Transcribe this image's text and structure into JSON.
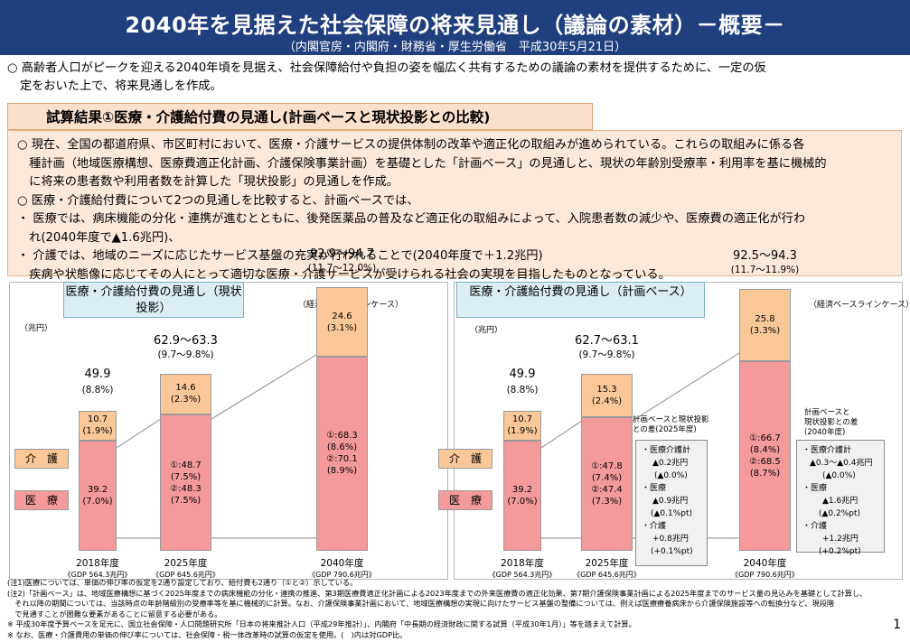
{
  "header": {
    "title": "2040年を見据えた社会保障の将来見通し（議論の素材）－概要－",
    "sub": "（内閣官房・内閣府・財務省・厚生労働省　平成30年5月21日）"
  },
  "intro": {
    "line1": "○ 高齢者人口がピークを迎える2040年頃を見据え、社会保障給付や負担の姿を幅広く共有するための議論の素材を提供するために、一定の仮",
    "line2": "定をおいた上で、将来見通しを作成。"
  },
  "section": {
    "title": "試算結果①医療・介護給付費の見通し(計画ベースと現状投影との比較)",
    "lines": [
      "○ 現在、全国の都道府県、市区町村において、医療・介護サービスの提供体制の改革や適正化の取組みが進められている。これらの取組みに係る各",
      "　種計画（地域医療構想、医療費適正化計画、介護保険事業計画）を基礎とした「計画ベース」の見通しと、現状の年齢別受療率・利用率を基に機械的",
      "　に将来の患者数や利用者数を計算した「現状投影」の見通しを作成。",
      "○ 医療・介護給付費について2つの見通しを比較すると、計画ベースでは、",
      "・ 医療では、病床機能の分化・連携が進むとともに、後発医薬品の普及など適正化の取組みによって、入院患者数の減少や、医療費の適正化が行わ",
      "　れ(2040年度で▲1.6兆円)、",
      "・ 介護では、地域のニーズに応じたサービス基盤の充実が行われることで(2040年度で＋1.2兆円)",
      "　疾病や状態像に応じてその人にとって適切な医療・介護サービスが受けられる社会の実現を目指したものとなっている。"
    ]
  },
  "legend": {
    "nursing": "介　護",
    "medical": "医　療"
  },
  "chart_data": [
    {
      "type": "bar",
      "title": "医療・介護給付費の見通し（現状投影）",
      "note": "（経済ベースラインケース）",
      "unit": "（兆円）",
      "categories": [
        "2018年度",
        "2025年度",
        "2040年度"
      ],
      "gdp": [
        "《GDP 564.3兆円》",
        "《GDP 645.6兆円》",
        "《GDP 790.6兆円》"
      ],
      "totals": [
        "49.9",
        "62.9～63.3",
        "92.9～94.7"
      ],
      "totals_pct": [
        "(8.8%)",
        "(9.7～9.8%)",
        "(11.7～12.0%)"
      ],
      "series": [
        {
          "name": "医療",
          "values": [
            39.2,
            48.5,
            69.2
          ],
          "labels": [
            [
              "39.2",
              "(7.0%)"
            ],
            [
              "①:48.7",
              "(7.5%)",
              "②:48.3",
              "(7.5%)"
            ],
            [
              "①:68.3",
              "(8.6%)",
              "②:70.1",
              "(8.9%)"
            ]
          ]
        },
        {
          "name": "介護",
          "values": [
            10.7,
            14.6,
            24.6
          ],
          "labels": [
            [
              "10.7",
              "(1.9%)"
            ],
            [
              "14.6",
              "(2.3%)"
            ],
            [
              "24.6",
              "(3.1%)"
            ]
          ]
        }
      ],
      "ylim": [
        0,
        100
      ]
    },
    {
      "type": "bar",
      "title": "医療・介護給付費の見通し（計画ベース）",
      "note": "（経済ベースラインケース）",
      "unit": "（兆円）",
      "categories": [
        "2018年度",
        "2025年度",
        "2040年度"
      ],
      "gdp": [
        "《GDP 564.3兆円》",
        "《GDP 645.6兆円》",
        "《GDP 790.6兆円》"
      ],
      "totals": [
        "49.9",
        "62.7～63.1",
        "92.5～94.3"
      ],
      "totals_pct": [
        "(8.8%)",
        "(9.7～9.8%)",
        "(11.7～11.9%)"
      ],
      "series": [
        {
          "name": "医療",
          "values": [
            39.2,
            47.6,
            67.6
          ],
          "labels": [
            [
              "39.2",
              "(7.0%)"
            ],
            [
              "①:47.8",
              "(7.4%)",
              "②:47.4",
              "(7.3%)"
            ],
            [
              "①:66.7",
              "(8.4%)",
              "②:68.5",
              "(8.7%)"
            ]
          ]
        },
        {
          "name": "介護",
          "values": [
            10.7,
            15.3,
            25.8
          ],
          "labels": [
            [
              "10.7",
              "(1.9%)"
            ],
            [
              "15.3",
              "(2.4%)"
            ],
            [
              "25.8",
              "(3.3%)"
            ]
          ]
        }
      ],
      "ylim": [
        0,
        100
      ]
    }
  ],
  "diff2025": {
    "caption1": "計画ベースと現状投影",
    "caption2": "との差(2025年度)",
    "lines": [
      "・医療介護計",
      "▲0.2兆円",
      "(▲0.0%)",
      "・医療",
      "▲0.9兆円",
      "(▲0.1%pt)",
      "・介護",
      "+0.8兆円",
      "(+0.1%pt)"
    ]
  },
  "diff2040": {
    "caption1": "計画ベースと",
    "caption2": "現状投影との差",
    "caption3": "(2040年度)",
    "lines": [
      "・医療介護計",
      "▲0.3～▲0.4兆円",
      "(▲0.0%)",
      "・医療",
      "▲1.6兆円",
      "(▲0.2%pt)",
      "・介護",
      "+1.2兆円",
      "(+0.2%pt)"
    ]
  },
  "notes": [
    "(注1)医療については、単価の伸び率の仮定を2通り設定しており、給付費も2通り（①と②）示している。",
    "(注2)「計画ベース」は、地域医療構想に基づく2025年度までの病床機能の分化・連携の推進、第3期医療費適正化計画による2023年度までの外来医療費の適正化効果、第7期介護保険事業計画による2025年度までのサービス量の見込みを基礎として計算し、",
    "　それ以降の期間については、当該時点の年齢階級別の受療率等を基に機械的に計算。なお、介護保険事業計画において、地域医療構想の実現に向けたサービス基盤の整備については、例えば医療療養病床から介護保険施設等への転換分など、現段階",
    "　で見通すことが困難な要素があることに留意する必要がある。",
    "※ 平成30年度予算ベースを足元に、国立社会保障・人口問題研究所「日本の将来推計人口（平成29年推計）」、内閣府「中長期の経済財政に関する試算（平成30年1月）」等を踏まえて計算。",
    "※ なお、医療・介護費用の単価の伸び率については、社会保障・税一体改革時の試算の仮定を使用。(　)内は対GDP比。"
  ],
  "page_number": "1"
}
